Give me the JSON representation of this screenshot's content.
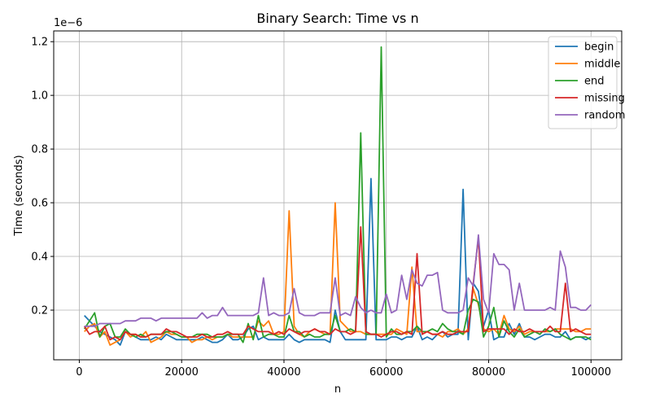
{
  "chart_data": {
    "type": "line",
    "title": "Binary Search: Time vs n",
    "xlabel": "n",
    "ylabel": "Time (seconds)",
    "y_scale_label": "1e−6",
    "xlim": [
      -5000,
      106000
    ],
    "ylim": [
      0.015,
      1.24
    ],
    "x_ticks": [
      0,
      20000,
      40000,
      60000,
      80000,
      100000
    ],
    "x_tick_labels": [
      "0",
      "20000",
      "40000",
      "60000",
      "80000",
      "100000"
    ],
    "y_ticks": [
      0.2,
      0.4,
      0.6,
      0.8,
      1.0,
      1.2
    ],
    "y_tick_labels": [
      "0.2",
      "0.4",
      "0.6",
      "0.8",
      "1.0",
      "1.2"
    ],
    "grid": true,
    "legend_position": "top-right",
    "x": [
      1000,
      2000,
      3000,
      4000,
      5000,
      6000,
      7000,
      8000,
      9000,
      10000,
      11000,
      12000,
      13000,
      14000,
      15000,
      16000,
      17000,
      18000,
      19000,
      20000,
      21000,
      22000,
      23000,
      24000,
      25000,
      26000,
      27000,
      28000,
      29000,
      30000,
      31000,
      32000,
      33000,
      34000,
      35000,
      36000,
      37000,
      38000,
      39000,
      40000,
      41000,
      42000,
      43000,
      44000,
      45000,
      46000,
      47000,
      48000,
      49000,
      50000,
      51000,
      52000,
      53000,
      54000,
      55000,
      56000,
      57000,
      58000,
      59000,
      60000,
      61000,
      62000,
      63000,
      64000,
      65000,
      66000,
      67000,
      68000,
      69000,
      70000,
      71000,
      72000,
      73000,
      74000,
      75000,
      76000,
      77000,
      78000,
      79000,
      80000,
      81000,
      82000,
      83000,
      84000,
      85000,
      86000,
      87000,
      88000,
      89000,
      90000,
      91000,
      92000,
      93000,
      94000,
      95000,
      96000,
      97000,
      98000,
      99000,
      100000
    ],
    "series": [
      {
        "name": "begin",
        "color": "#1f77b4",
        "values": [
          0.18,
          0.16,
          0.14,
          0.12,
          0.11,
          0.1,
          0.09,
          0.07,
          0.12,
          0.11,
          0.1,
          0.09,
          0.09,
          0.09,
          0.1,
          0.09,
          0.11,
          0.1,
          0.09,
          0.09,
          0.09,
          0.09,
          0.09,
          0.1,
          0.09,
          0.08,
          0.08,
          0.09,
          0.11,
          0.09,
          0.09,
          0.1,
          0.13,
          0.14,
          0.09,
          0.1,
          0.09,
          0.09,
          0.09,
          0.09,
          0.11,
          0.09,
          0.08,
          0.09,
          0.09,
          0.09,
          0.09,
          0.09,
          0.08,
          0.2,
          0.12,
          0.09,
          0.09,
          0.09,
          0.09,
          0.09,
          0.69,
          0.09,
          0.09,
          0.09,
          0.1,
          0.1,
          0.09,
          0.1,
          0.1,
          0.14,
          0.09,
          0.1,
          0.09,
          0.11,
          0.12,
          0.1,
          0.11,
          0.11,
          0.65,
          0.09,
          0.3,
          0.27,
          0.14,
          0.2,
          0.09,
          0.1,
          0.1,
          0.15,
          0.11,
          0.15,
          0.1,
          0.1,
          0.09,
          0.1,
          0.11,
          0.11,
          0.1,
          0.1,
          0.12,
          0.09,
          0.1,
          0.1,
          0.09,
          0.1
        ]
      },
      {
        "name": "middle",
        "color": "#ff7f0e",
        "values": [
          0.12,
          0.14,
          0.15,
          0.1,
          0.12,
          0.07,
          0.08,
          0.09,
          0.12,
          0.1,
          0.11,
          0.1,
          0.12,
          0.08,
          0.09,
          0.1,
          0.12,
          0.11,
          0.11,
          0.1,
          0.1,
          0.08,
          0.09,
          0.09,
          0.1,
          0.09,
          0.1,
          0.1,
          0.11,
          0.1,
          0.1,
          0.1,
          0.1,
          0.1,
          0.16,
          0.14,
          0.16,
          0.11,
          0.11,
          0.12,
          0.57,
          0.14,
          0.11,
          0.1,
          0.12,
          0.13,
          0.12,
          0.11,
          0.11,
          0.6,
          0.16,
          0.14,
          0.12,
          0.12,
          0.12,
          0.11,
          0.11,
          0.11,
          0.11,
          0.11,
          0.11,
          0.13,
          0.12,
          0.11,
          0.36,
          0.12,
          0.12,
          0.12,
          0.11,
          0.11,
          0.1,
          0.12,
          0.12,
          0.13,
          0.11,
          0.13,
          0.28,
          0.22,
          0.13,
          0.12,
          0.13,
          0.11,
          0.18,
          0.13,
          0.12,
          0.14,
          0.11,
          0.12,
          0.12,
          0.12,
          0.12,
          0.12,
          0.13,
          0.13,
          0.13,
          0.13,
          0.12,
          0.12,
          0.13,
          0.13
        ]
      },
      {
        "name": "end",
        "color": "#2ca02c",
        "values": [
          0.13,
          0.16,
          0.19,
          0.1,
          0.14,
          0.15,
          0.1,
          0.1,
          0.13,
          0.11,
          0.1,
          0.11,
          0.1,
          0.11,
          0.11,
          0.11,
          0.12,
          0.12,
          0.11,
          0.1,
          0.1,
          0.1,
          0.11,
          0.11,
          0.11,
          0.1,
          0.1,
          0.1,
          0.11,
          0.11,
          0.11,
          0.08,
          0.15,
          0.09,
          0.18,
          0.1,
          0.11,
          0.11,
          0.1,
          0.1,
          0.18,
          0.12,
          0.12,
          0.1,
          0.11,
          0.1,
          0.1,
          0.11,
          0.11,
          0.18,
          0.12,
          0.12,
          0.13,
          0.12,
          0.86,
          0.11,
          0.11,
          0.11,
          1.18,
          0.1,
          0.13,
          0.11,
          0.11,
          0.12,
          0.12,
          0.14,
          0.12,
          0.12,
          0.13,
          0.12,
          0.15,
          0.13,
          0.12,
          0.12,
          0.11,
          0.2,
          0.24,
          0.23,
          0.1,
          0.14,
          0.21,
          0.1,
          0.16,
          0.12,
          0.1,
          0.13,
          0.1,
          0.11,
          0.12,
          0.11,
          0.13,
          0.12,
          0.13,
          0.11,
          0.1,
          0.09,
          0.1,
          0.1,
          0.1,
          0.09
        ]
      },
      {
        "name": "missing",
        "color": "#d62728",
        "values": [
          0.14,
          0.11,
          0.12,
          0.12,
          0.14,
          0.09,
          0.1,
          0.09,
          0.12,
          0.11,
          0.11,
          0.1,
          0.1,
          0.11,
          0.11,
          0.11,
          0.13,
          0.12,
          0.12,
          0.11,
          0.1,
          0.1,
          0.1,
          0.11,
          0.1,
          0.1,
          0.11,
          0.11,
          0.12,
          0.11,
          0.11,
          0.11,
          0.14,
          0.13,
          0.12,
          0.12,
          0.12,
          0.11,
          0.12,
          0.11,
          0.13,
          0.12,
          0.11,
          0.12,
          0.12,
          0.13,
          0.12,
          0.12,
          0.11,
          0.13,
          0.12,
          0.12,
          0.11,
          0.12,
          0.51,
          0.12,
          0.11,
          0.11,
          0.1,
          0.11,
          0.12,
          0.12,
          0.11,
          0.12,
          0.11,
          0.41,
          0.11,
          0.12,
          0.11,
          0.11,
          0.12,
          0.11,
          0.11,
          0.12,
          0.12,
          0.12,
          0.3,
          0.47,
          0.12,
          0.13,
          0.13,
          0.13,
          0.13,
          0.11,
          0.13,
          0.12,
          0.12,
          0.13,
          0.12,
          0.12,
          0.12,
          0.14,
          0.12,
          0.12,
          0.3,
          0.12,
          0.13,
          0.12,
          0.11,
          0.11
        ]
      },
      {
        "name": "random",
        "color": "#9467bd",
        "values": [
          0.14,
          0.14,
          0.14,
          0.15,
          0.15,
          0.15,
          0.15,
          0.15,
          0.16,
          0.16,
          0.16,
          0.17,
          0.17,
          0.17,
          0.16,
          0.17,
          0.17,
          0.17,
          0.17,
          0.17,
          0.17,
          0.17,
          0.17,
          0.19,
          0.17,
          0.18,
          0.18,
          0.21,
          0.18,
          0.18,
          0.18,
          0.18,
          0.18,
          0.18,
          0.19,
          0.32,
          0.18,
          0.19,
          0.18,
          0.18,
          0.19,
          0.28,
          0.19,
          0.18,
          0.18,
          0.18,
          0.19,
          0.19,
          0.19,
          0.32,
          0.18,
          0.19,
          0.18,
          0.25,
          0.21,
          0.19,
          0.2,
          0.19,
          0.19,
          0.26,
          0.19,
          0.2,
          0.33,
          0.24,
          0.35,
          0.3,
          0.29,
          0.33,
          0.33,
          0.34,
          0.2,
          0.19,
          0.19,
          0.19,
          0.2,
          0.32,
          0.29,
          0.48,
          0.24,
          0.19,
          0.41,
          0.37,
          0.37,
          0.35,
          0.2,
          0.3,
          0.2,
          0.2,
          0.2,
          0.2,
          0.2,
          0.21,
          0.2,
          0.42,
          0.36,
          0.21,
          0.21,
          0.2,
          0.2,
          0.22
        ]
      }
    ]
  }
}
